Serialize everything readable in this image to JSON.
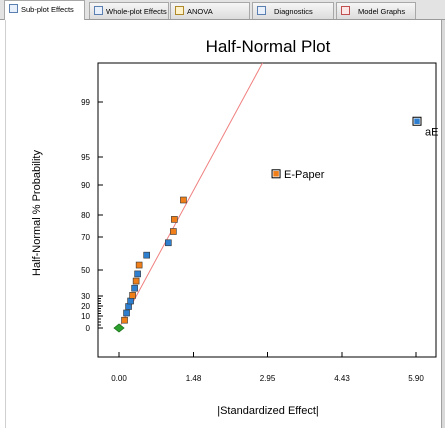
{
  "tabs": [
    {
      "label": "Sub-plot Effects",
      "active": true,
      "icon": "halfnormal-plot-icon"
    },
    {
      "label": "Whole-plot Effects",
      "active": false,
      "icon": "halfnormal-plot-icon"
    },
    {
      "label": "ANOVA",
      "active": false,
      "icon": "anova-table-icon"
    },
    {
      "label": "Diagnostics",
      "active": false,
      "icon": "diagnostics-icon"
    },
    {
      "label": "Model Graphs",
      "active": false,
      "icon": "model-graphs-icon"
    }
  ],
  "chart_data": {
    "type": "scatter",
    "title": "Half-Normal Plot",
    "xlabel": "|Standardized Effect|",
    "ylabel": "Half-Normal % Probability",
    "xlim": [
      -0.6,
      6.2
    ],
    "ylim": [
      -15,
      99.9
    ],
    "x_ticks": [
      "0.00",
      "1.48",
      "2.95",
      "4.43",
      "5.90"
    ],
    "y_ticks": [
      "0",
      "10",
      "20",
      "30",
      "50",
      "70",
      "80",
      "90",
      "95",
      "99"
    ],
    "colors": {
      "selected": "#f07f1a",
      "error": "#2f7fd0",
      "line": "#f08080",
      "origin": "#2ca02c"
    },
    "annotations": [
      {
        "text": "E-Paper",
        "x": 3.12,
        "y": 92.0
      },
      {
        "text": "aE",
        "x": 5.92,
        "y": 97.6
      }
    ],
    "fit_line": [
      [
        0.0,
        0.0
      ],
      [
        2.85,
        99.9
      ]
    ],
    "points": [
      {
        "x": 0.0,
        "y": 0.0,
        "kind": "origin"
      },
      {
        "x": 0.11,
        "y": 6.5,
        "kind": "selected"
      },
      {
        "x": 0.15,
        "y": 13.0,
        "kind": "error"
      },
      {
        "x": 0.19,
        "y": 19.5,
        "kind": "error"
      },
      {
        "x": 0.23,
        "y": 25.0,
        "kind": "error"
      },
      {
        "x": 0.27,
        "y": 30.5,
        "kind": "selected"
      },
      {
        "x": 0.31,
        "y": 36.0,
        "kind": "error"
      },
      {
        "x": 0.34,
        "y": 41.5,
        "kind": "selected"
      },
      {
        "x": 0.37,
        "y": 47.0,
        "kind": "error"
      },
      {
        "x": 0.4,
        "y": 53.0,
        "kind": "selected"
      },
      {
        "x": 0.55,
        "y": 59.0,
        "kind": "error"
      },
      {
        "x": 0.98,
        "y": 66.5,
        "kind": "error"
      },
      {
        "x": 1.08,
        "y": 72.5,
        "kind": "selected"
      },
      {
        "x": 1.1,
        "y": 78.0,
        "kind": "selected"
      },
      {
        "x": 1.28,
        "y": 85.0,
        "kind": "selected"
      },
      {
        "x": 3.12,
        "y": 92.0,
        "kind": "selected"
      },
      {
        "x": 5.92,
        "y": 97.6,
        "kind": "error"
      }
    ]
  }
}
